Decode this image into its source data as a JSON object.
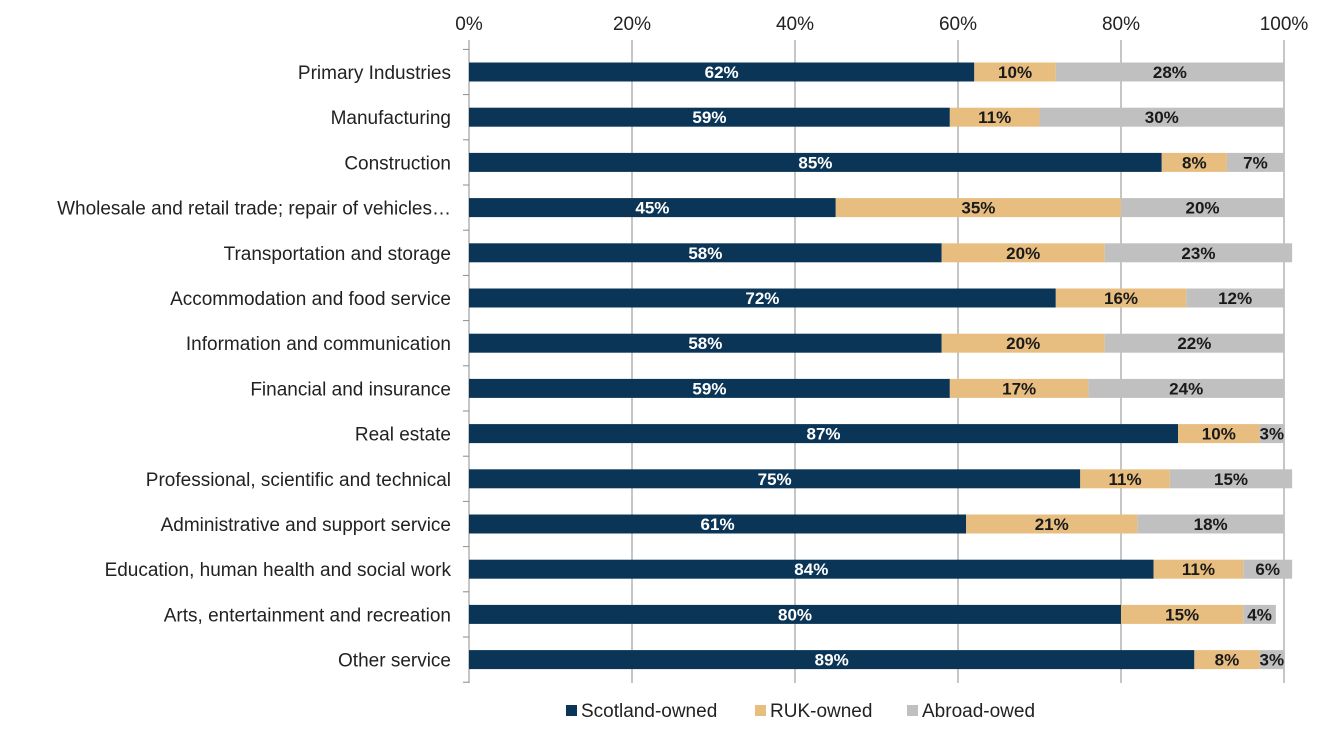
{
  "chart_data": {
    "type": "bar",
    "orientation": "horizontal",
    "stacked": true,
    "title": "",
    "xlabel": "",
    "ylabel": "",
    "xlim": [
      0,
      100
    ],
    "x_ticks": [
      "0%",
      "20%",
      "40%",
      "60%",
      "80%",
      "100%"
    ],
    "grid": true,
    "legend_position": "bottom",
    "categories": [
      "Primary Industries",
      "Manufacturing",
      "Construction",
      "Wholesale and retail trade; repair of  vehicles…",
      "Transportation and storage",
      "Accommodation and food service",
      "Information and communication",
      "Financial and insurance",
      "Real estate",
      "Professional, scientific and technical",
      "Administrative and support service",
      "Education, human health and social work",
      "Arts, entertainment and recreation",
      "Other service"
    ],
    "series": [
      {
        "name": "Scotland-owned",
        "color": "#0b3557",
        "label_color": "#ffffff",
        "values": [
          62,
          59,
          85,
          45,
          58,
          72,
          58,
          59,
          87,
          75,
          61,
          84,
          80,
          89
        ],
        "labels": [
          "62%",
          "59%",
          "85%",
          "45%",
          "58%",
          "72%",
          "58%",
          "59%",
          "87%",
          "75%",
          "61%",
          "84%",
          "80%",
          "89%"
        ]
      },
      {
        "name": "RUK-owned",
        "color": "#e8be80",
        "label_color": "#1a1a1a",
        "values": [
          10,
          11,
          8,
          35,
          20,
          16,
          20,
          17,
          10,
          11,
          21,
          11,
          15,
          8
        ],
        "labels": [
          "10%",
          "11%",
          "8%",
          "35%",
          "20%",
          "16%",
          "20%",
          "17%",
          "10%",
          "11%",
          "21%",
          "11%",
          "15%",
          "8%"
        ]
      },
      {
        "name": "Abroad-owed",
        "color": "#c0c0c0",
        "label_color": "#1a1a1a",
        "values": [
          28,
          30,
          7,
          20,
          23,
          12,
          22,
          24,
          3,
          15,
          18,
          6,
          4,
          3
        ],
        "labels": [
          "28%",
          "30%",
          "7%",
          "20%",
          "23%",
          "12%",
          "22%",
          "24%",
          "3%",
          "15%",
          "18%",
          "6%",
          "4%",
          "3%"
        ]
      }
    ]
  }
}
